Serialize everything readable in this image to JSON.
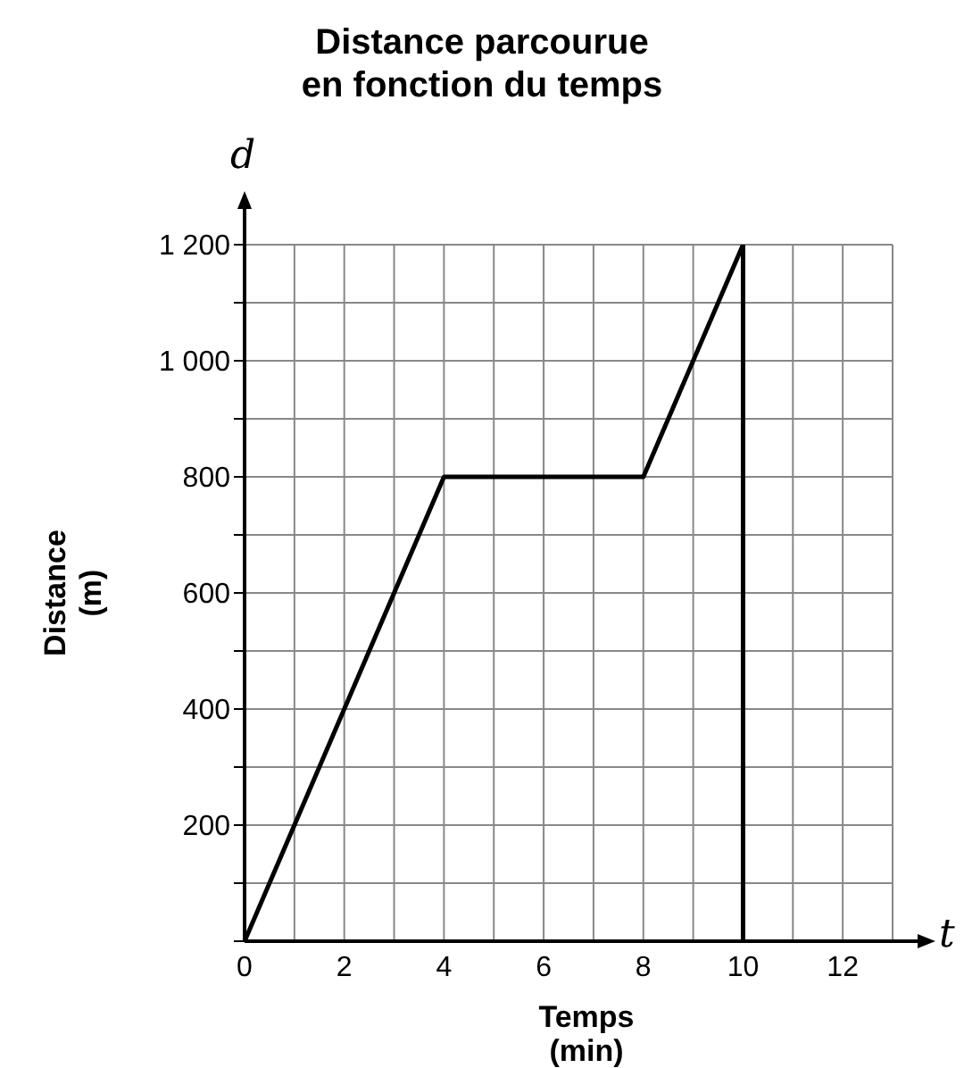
{
  "chart_data": {
    "type": "line",
    "title": "Distance parcourue\nen fonction du temps",
    "xlabel": "Temps\n(min)",
    "ylabel": "Distance\n(m)",
    "annotations": [
      "d",
      "t"
    ],
    "series": [
      {
        "color": "#000000",
        "x": [
          0,
          4,
          8,
          10,
          10
        ],
        "values": [
          0,
          800,
          800,
          1200,
          0
        ]
      }
    ],
    "xlim": [
      0,
      13
    ],
    "xticks": [
      {
        "value": 0,
        "label": "0"
      },
      {
        "value": 1,
        "label": null
      },
      2,
      {
        "value": 3,
        "label": null
      },
      4,
      {
        "value": 5,
        "label": null
      },
      6,
      {
        "value": 7,
        "label": null
      },
      8,
      {
        "value": 9,
        "label": null
      },
      10,
      {
        "value": 11,
        "label": null
      },
      12,
      {
        "value": 13,
        "label": null
      }
    ],
    "ylim": [
      0,
      1200
    ],
    "yticks": [
      {
        "value": 0,
        "label": null
      },
      {
        "value": 100,
        "label": null
      },
      200,
      {
        "value": 300,
        "label": null
      },
      400,
      {
        "value": 500,
        "label": null
      },
      600,
      {
        "value": 700,
        "label": null
      },
      800,
      {
        "value": 900,
        "label": null
      },
      {
        "value": 1000,
        "label": "1 000"
      },
      {
        "value": 1100,
        "label": null
      },
      {
        "value": 1200,
        "label": "1 200"
      }
    ],
    "grid": true,
    "legend": false,
    "marker": "none",
    "line_style": "solid"
  }
}
